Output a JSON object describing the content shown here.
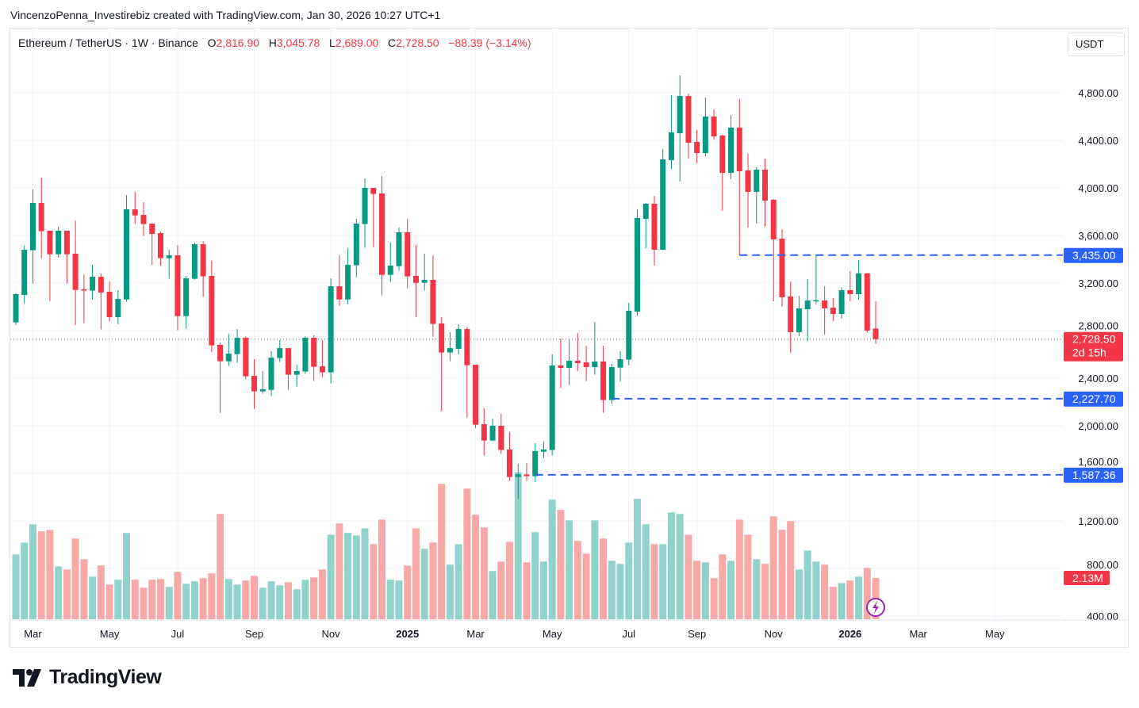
{
  "credit": "VincenzoPenna_Investirebiz created with TradingView.com, Jan 30, 2026 10:27 UTC+1",
  "legend": {
    "symbol": "Ethereum / TetherUS · 1W · Binance",
    "o_label": "O",
    "o": "2,816.90",
    "h_label": "H",
    "h": "3,045.78",
    "l_label": "L",
    "l": "2,689.00",
    "c_label": "C",
    "c": "2,728.50",
    "change": "−88.39 (−3.14%)"
  },
  "currency_button": "USDT",
  "brand": "TradingView",
  "colors": {
    "up": "#089981",
    "down": "#f23645",
    "vol_up": "#92d2cc",
    "vol_down": "#f7a9a7",
    "level": "#2962ff"
  },
  "chart_data": {
    "type": "candlestick",
    "y_ticks": [
      "4,800.00",
      "4,400.00",
      "4,000.00",
      "3,600.00",
      "3,200.00",
      "2,800.00",
      "2,400.00",
      "2,000.00",
      "1,600.00",
      "1,200.00",
      "800.00",
      "400.00"
    ],
    "y_tick_values": [
      4800,
      4400,
      4000,
      3600,
      3200,
      2800,
      2400,
      2000,
      1600,
      1200,
      800,
      400
    ],
    "ylim": [
      400,
      4800
    ],
    "x_ticks": [
      {
        "label": "Mar",
        "bold": false,
        "week": 2
      },
      {
        "label": "May",
        "bold": false,
        "week": 11
      },
      {
        "label": "Jul",
        "bold": false,
        "week": 19
      },
      {
        "label": "Sep",
        "bold": false,
        "week": 28
      },
      {
        "label": "Nov",
        "bold": false,
        "week": 37
      },
      {
        "label": "2025",
        "bold": true,
        "week": 46
      },
      {
        "label": "Mar",
        "bold": false,
        "week": 54
      },
      {
        "label": "May",
        "bold": false,
        "week": 63
      },
      {
        "label": "Jul",
        "bold": false,
        "week": 72
      },
      {
        "label": "Sep",
        "bold": false,
        "week": 80
      },
      {
        "label": "Nov",
        "bold": false,
        "week": 89
      },
      {
        "label": "2026",
        "bold": true,
        "week": 98
      },
      {
        "label": "Mar",
        "bold": false,
        "week": 106
      },
      {
        "label": "May",
        "bold": false,
        "week": 115
      }
    ],
    "interval": "1W",
    "columns": [
      "open",
      "high",
      "low",
      "close",
      "volume_M"
    ],
    "ohlcv": [
      [
        2869,
        3113,
        2847,
        3107,
        3.35
      ],
      [
        3100,
        3513,
        3029,
        3480,
        3.96
      ],
      [
        3476,
        3987,
        3196,
        3873,
        4.9
      ],
      [
        3873,
        4087,
        3409,
        3636,
        4.54
      ],
      [
        3640,
        3640,
        3047,
        3442,
        4.62
      ],
      [
        3442,
        3673,
        3413,
        3640,
        2.73
      ],
      [
        3640,
        3640,
        3196,
        3442,
        2.57
      ],
      [
        3447,
        3724,
        2847,
        3142,
        4.17
      ],
      [
        3147,
        3273,
        2862,
        3136,
        3.1
      ],
      [
        3136,
        3353,
        3062,
        3253,
        2.2
      ],
      [
        3253,
        3280,
        2809,
        3120,
        2.78
      ],
      [
        3127,
        3213,
        2876,
        2913,
        1.79
      ],
      [
        2913,
        3140,
        2853,
        3067,
        2.04
      ],
      [
        3062,
        3940,
        3042,
        3820,
        4.46
      ],
      [
        3820,
        3967,
        3696,
        3769,
        2.04
      ],
      [
        3773,
        3880,
        3596,
        3696,
        1.63
      ],
      [
        3700,
        3700,
        3353,
        3613,
        2.04
      ],
      [
        3620,
        3633,
        3347,
        3409,
        2.08
      ],
      [
        3409,
        3480,
        3236,
        3433,
        1.67
      ],
      [
        3433,
        3520,
        2802,
        2922,
        2.45
      ],
      [
        2922,
        3260,
        2816,
        3240,
        1.83
      ],
      [
        3236,
        3540,
        3229,
        3527,
        1.96
      ],
      [
        3527,
        3553,
        3082,
        3256,
        2.12
      ],
      [
        3260,
        3389,
        2622,
        2676,
        2.37
      ],
      [
        2680,
        2700,
        2109,
        2542,
        5.44
      ],
      [
        2542,
        2773,
        2502,
        2607,
        2.08
      ],
      [
        2602,
        2813,
        2529,
        2740,
        1.79
      ],
      [
        2740,
        2751,
        2389,
        2416,
        2.0
      ],
      [
        2420,
        2560,
        2142,
        2289,
        2.24
      ],
      [
        2289,
        2460,
        2269,
        2307,
        1.63
      ],
      [
        2302,
        2627,
        2249,
        2573,
        1.96
      ],
      [
        2569,
        2720,
        2536,
        2653,
        1.75
      ],
      [
        2653,
        2653,
        2302,
        2429,
        1.91
      ],
      [
        2429,
        2513,
        2329,
        2460,
        1.55
      ],
      [
        2456,
        2753,
        2436,
        2740,
        2.04
      ],
      [
        2740,
        2760,
        2376,
        2496,
        2.16
      ],
      [
        2500,
        2720,
        2409,
        2449,
        2.57
      ],
      [
        2449,
        3240,
        2356,
        3173,
        4.37
      ],
      [
        3173,
        3433,
        3009,
        3062,
        4.95
      ],
      [
        3062,
        3493,
        3022,
        3353,
        4.46
      ],
      [
        3349,
        3740,
        3249,
        3700,
        4.33
      ],
      [
        3696,
        4080,
        3496,
        4000,
        4.7
      ],
      [
        4000,
        4000,
        3502,
        3949,
        3.88
      ],
      [
        3953,
        4100,
        3096,
        3269,
        5.15
      ],
      [
        3269,
        3540,
        3209,
        3347,
        2.04
      ],
      [
        3342,
        3667,
        3302,
        3627,
        2.0
      ],
      [
        3627,
        3740,
        3156,
        3256,
        2.77
      ],
      [
        3260,
        3520,
        2916,
        3202,
        4.7
      ],
      [
        3202,
        3447,
        3136,
        3227,
        3.64
      ],
      [
        3227,
        3433,
        2749,
        2856,
        3.96
      ],
      [
        2860,
        2913,
        2122,
        2616,
        7.0
      ],
      [
        2616,
        2787,
        2542,
        2653,
        2.82
      ],
      [
        2647,
        2853,
        2602,
        2813,
        3.88
      ],
      [
        2813,
        2831,
        2069,
        2509,
        6.75
      ],
      [
        2513,
        2513,
        1982,
        2009,
        5.4
      ],
      [
        2013,
        2147,
        1749,
        1876,
        4.74
      ],
      [
        1876,
        2060,
        1869,
        2000,
        2.49
      ],
      [
        2000,
        2100,
        1762,
        1796,
        2.98
      ],
      [
        1800,
        1947,
        1536,
        1569,
        4.0
      ],
      [
        1569,
        1680,
        1382,
        1591,
        7.6
      ],
      [
        1591,
        1687,
        1536,
        1576,
        2.94
      ],
      [
        1576,
        1853,
        1527,
        1787,
        4.5
      ],
      [
        1782,
        1867,
        1729,
        1800,
        2.98
      ],
      [
        1796,
        2600,
        1749,
        2507,
        6.18
      ],
      [
        2507,
        2733,
        2316,
        2487,
        5.65
      ],
      [
        2487,
        2727,
        2342,
        2547,
        5.11
      ],
      [
        2547,
        2780,
        2462,
        2527,
        4.05
      ],
      [
        2533,
        2673,
        2376,
        2493,
        3.39
      ],
      [
        2493,
        2873,
        2429,
        2540,
        5.11
      ],
      [
        2540,
        2673,
        2109,
        2216,
        4.17
      ],
      [
        2216,
        2520,
        2182,
        2493,
        3.02
      ],
      [
        2489,
        2627,
        2369,
        2560,
        2.86
      ],
      [
        2556,
        3033,
        2509,
        2967,
        3.96
      ],
      [
        2960,
        3820,
        2927,
        3747,
        6.22
      ],
      [
        3740,
        3873,
        3493,
        3867,
        4.91
      ],
      [
        3867,
        3933,
        3347,
        3480,
        3.88
      ],
      [
        3480,
        4327,
        3480,
        4240,
        3.88
      ],
      [
        4233,
        4780,
        4160,
        4467,
        5.52
      ],
      [
        4460,
        4947,
        4053,
        4773,
        5.44
      ],
      [
        4773,
        4793,
        4247,
        4380,
        4.37
      ],
      [
        4387,
        4487,
        4207,
        4293,
        3.02
      ],
      [
        4293,
        4760,
        4267,
        4600,
        2.94
      ],
      [
        4600,
        4660,
        4407,
        4433,
        2.12
      ],
      [
        4440,
        4447,
        3807,
        4127,
        3.35
      ],
      [
        4127,
        4613,
        4073,
        4507,
        3.02
      ],
      [
        4507,
        4747,
        3435,
        4140,
        5.15
      ],
      [
        4147,
        4287,
        3667,
        3967,
        4.37
      ],
      [
        3967,
        4173,
        3700,
        4153,
        3.1
      ],
      [
        4153,
        4247,
        3673,
        3893,
        2.86
      ],
      [
        3900,
        3907,
        3047,
        3567,
        5.32
      ],
      [
        3573,
        3653,
        3000,
        3080,
        4.62
      ],
      [
        3087,
        3213,
        2613,
        2787,
        5.07
      ],
      [
        2787,
        3093,
        2753,
        2987,
        2.57
      ],
      [
        2980,
        3233,
        2713,
        3053,
        3.55
      ],
      [
        3050,
        3440,
        3020,
        3056,
        2.98
      ],
      [
        3053,
        3173,
        2767,
        2987,
        2.82
      ],
      [
        2993,
        3073,
        2880,
        2940,
        1.67
      ],
      [
        2940,
        3160,
        2900,
        3140,
        1.87
      ],
      [
        3140,
        3300,
        3047,
        3107,
        2.0
      ],
      [
        3107,
        3393,
        3060,
        3282,
        2.2
      ],
      [
        3282,
        3282,
        2780,
        2800,
        2.65
      ],
      [
        2816.9,
        3045.78,
        2689.0,
        2728.5,
        2.13
      ]
    ],
    "horizontal_levels": [
      {
        "price": 3435.0,
        "label": "3,435.00",
        "from_week": 86
      },
      {
        "price": 2227.7,
        "label": "2,227.70",
        "from_week": 71
      },
      {
        "price": 1587.36,
        "label": "1,587.36",
        "from_week": 62
      }
    ],
    "last_price": {
      "price": 2728.5,
      "label": "2,728.50",
      "countdown": "2d 15h"
    },
    "last_volume": {
      "value": 2.13,
      "label": "2.13M"
    }
  }
}
